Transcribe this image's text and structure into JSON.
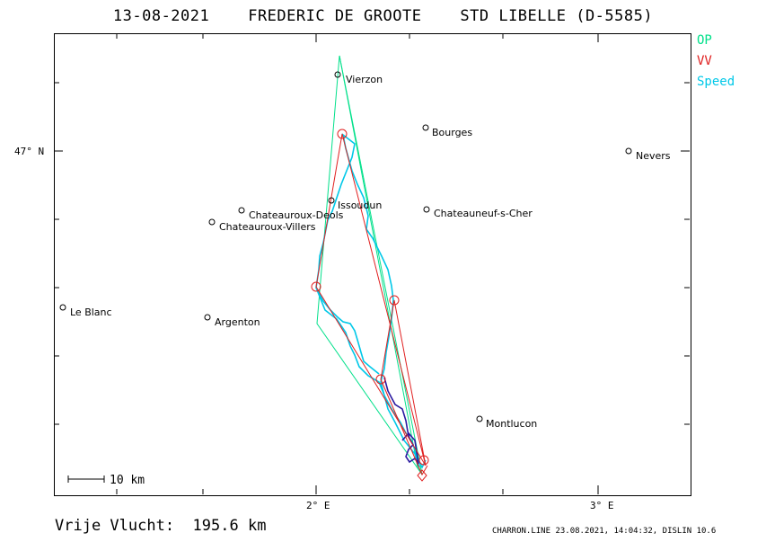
{
  "header": {
    "date": "13-08-2021",
    "pilot": "FREDERIC DE GROOTE",
    "glider": "STD LIBELLE (D-5585)"
  },
  "legend": [
    {
      "label": "OP",
      "color": "#00e08a"
    },
    {
      "label": "VV",
      "color": "#e02020"
    },
    {
      "label": "Speed",
      "color": "#00c8e8"
    }
  ],
  "axes": {
    "lat_label": "47° N",
    "lon_labels": [
      "2° E",
      "3° E"
    ]
  },
  "scale": {
    "label": "10 km"
  },
  "distance": {
    "label": "Vrije Vlucht:",
    "value": "195.6 km"
  },
  "footer": "CHARRON.LINE 23.08.2021, 14:04:32, DISLIN 10.6",
  "places": [
    {
      "name": "Vierzon"
    },
    {
      "name": "Bourges"
    },
    {
      "name": "Nevers"
    },
    {
      "name": "Issoudun"
    },
    {
      "name": "Chateauroux-Deols"
    },
    {
      "name": "Chateauroux-Villers"
    },
    {
      "name": "Chateauneuf-s-Cher"
    },
    {
      "name": "Le Blanc"
    },
    {
      "name": "Argenton"
    },
    {
      "name": "Montlucon"
    }
  ],
  "colors": {
    "op": "#00e08a",
    "vv": "#e02020",
    "speed": "#00c8e8",
    "track_low": "#2a1aa0"
  }
}
